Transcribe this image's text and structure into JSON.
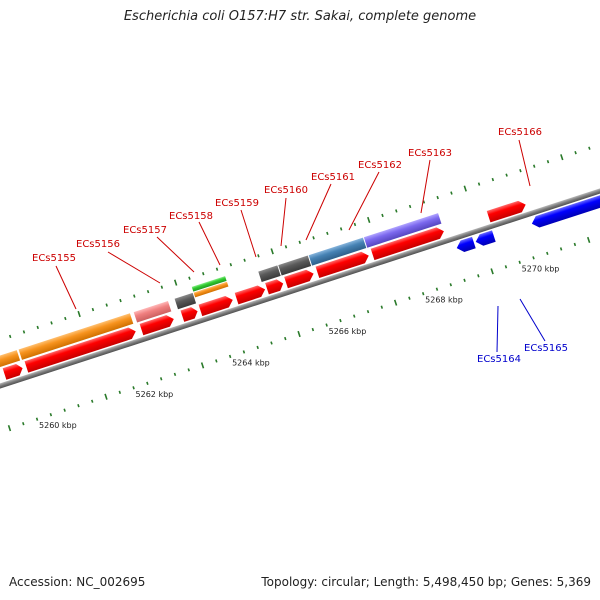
{
  "title": "Escherichia coli O157:H7 str. Sakai, complete genome",
  "footer": {
    "accession": "Accession: NC_002695",
    "summary": "Topology: circular; Length: 5,498,450 bp; Genes: 5,369"
  },
  "scale_labels": [
    "5260 kbp",
    "5262 kbp",
    "5264 kbp",
    "5266 kbp",
    "5268 kbp",
    "5270 kbp"
  ],
  "colors": {
    "plus_label": "#cc0000",
    "minus_label": "#0000cc",
    "backbone": "#777777",
    "tick": "#2a7a2a",
    "cds_forward": "#ff0000",
    "cds_reverse": "#0000ff",
    "orange": "#f7931e",
    "pink": "#f08080",
    "dark_gray": "#555555",
    "green": "#33cc33",
    "steel_blue": "#4682b4",
    "purple": "#7b68ee"
  },
  "genes_top": [
    {
      "name": "ECs5155"
    },
    {
      "name": "ECs5156"
    },
    {
      "name": "ECs5157"
    },
    {
      "name": "ECs5158"
    },
    {
      "name": "ECs5159"
    },
    {
      "name": "ECs5160"
    },
    {
      "name": "ECs5161"
    },
    {
      "name": "ECs5162"
    },
    {
      "name": "ECs5163"
    },
    {
      "name": "ECs5166"
    }
  ],
  "genes_bottom": [
    {
      "name": "ECs5164"
    },
    {
      "name": "ECs5165"
    }
  ]
}
